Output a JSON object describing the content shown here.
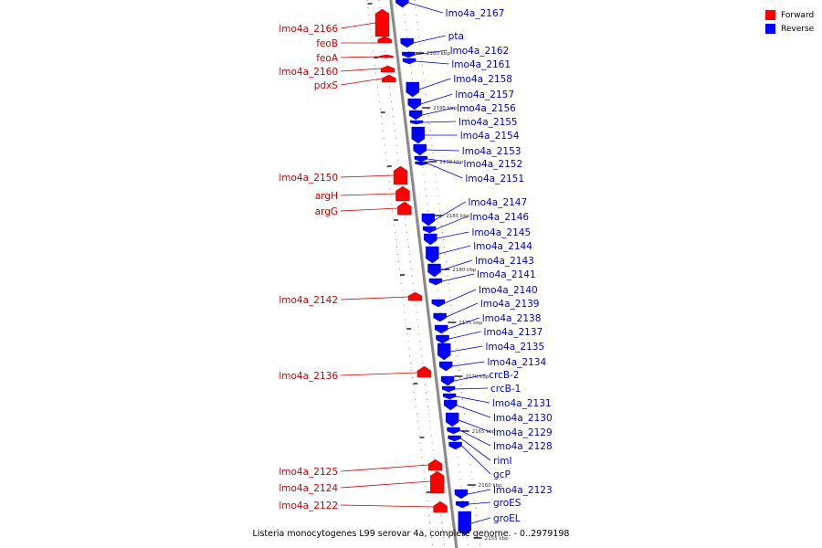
{
  "caption": "Listeria monocytogenes L99 serovar 4a, complete genome. - 0..2979198",
  "colors": {
    "forward": "#ff0000",
    "reverse": "#0000ff",
    "forward_label": "#cc0000",
    "reverse_label": "#0000cc",
    "backbone": "#888888"
  },
  "legend": [
    {
      "label": "Forward",
      "color": "#ff0000"
    },
    {
      "label": "Reverse",
      "color": "#0000ff"
    }
  ],
  "scale_marks": [
    {
      "label": "2200 kbp"
    },
    {
      "label": "2195 kbp"
    },
    {
      "label": "2190 kbp"
    },
    {
      "label": "2185 kbp"
    },
    {
      "label": "2180 kbp"
    },
    {
      "label": "2175 kbp"
    },
    {
      "label": "2170 kbp"
    },
    {
      "label": "2165 kbp"
    },
    {
      "label": "2160 kbp"
    },
    {
      "label": "2155 kbp"
    }
  ],
  "forward_genes": [
    {
      "name": "lmo4a_2166"
    },
    {
      "name": "feoB"
    },
    {
      "name": "feoA"
    },
    {
      "name": "lmo4a_2160"
    },
    {
      "name": "pdxS"
    },
    {
      "name": "lmo4a_2150"
    },
    {
      "name": "argH"
    },
    {
      "name": "argG"
    },
    {
      "name": "lmo4a_2142"
    },
    {
      "name": "lmo4a_2136"
    },
    {
      "name": "lmo4a_2125"
    },
    {
      "name": "lmo4a_2124"
    },
    {
      "name": "lmo4a_2122"
    }
  ],
  "reverse_genes": [
    {
      "name": "lmo4a_2167"
    },
    {
      "name": "pta"
    },
    {
      "name": "lmo4a_2162"
    },
    {
      "name": "lmo4a_2161"
    },
    {
      "name": "lmo4a_2158"
    },
    {
      "name": "lmo4a_2157"
    },
    {
      "name": "lmo4a_2156"
    },
    {
      "name": "lmo4a_2155"
    },
    {
      "name": "lmo4a_2154"
    },
    {
      "name": "lmo4a_2153"
    },
    {
      "name": "lmo4a_2152"
    },
    {
      "name": "lmo4a_2151"
    },
    {
      "name": "lmo4a_2147"
    },
    {
      "name": "lmo4a_2146"
    },
    {
      "name": "lmo4a_2145"
    },
    {
      "name": "lmo4a_2144"
    },
    {
      "name": "lmo4a_2143"
    },
    {
      "name": "lmo4a_2141"
    },
    {
      "name": "lmo4a_2140"
    },
    {
      "name": "lmo4a_2139"
    },
    {
      "name": "lmo4a_2138"
    },
    {
      "name": "lmo4a_2137"
    },
    {
      "name": "lmo4a_2135"
    },
    {
      "name": "lmo4a_2134"
    },
    {
      "name": "crcB-2"
    },
    {
      "name": "crcB-1"
    },
    {
      "name": "lmo4a_2131"
    },
    {
      "name": "lmo4a_2130"
    },
    {
      "name": "lmo4a_2129"
    },
    {
      "name": "lmo4a_2128"
    },
    {
      "name": "rimI"
    },
    {
      "name": "gcP"
    },
    {
      "name": "lmo4a_2123"
    },
    {
      "name": "groES"
    },
    {
      "name": "groEL"
    }
  ]
}
